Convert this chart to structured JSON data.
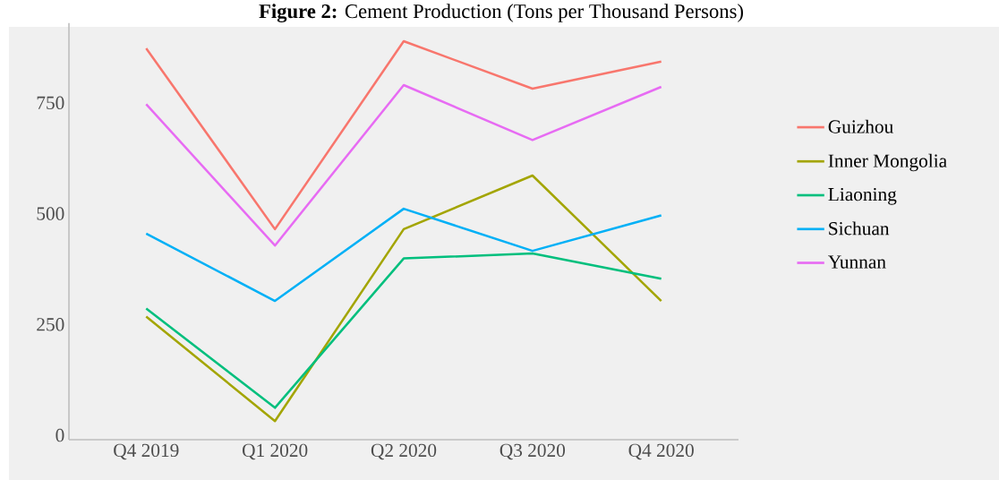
{
  "chart_data": {
    "type": "line",
    "title": "**Figure 2:** Cement Production (Tons per Thousand Persons)",
    "categories": [
      "Q4 2019",
      "Q1 2020",
      "Q2 2020",
      "Q3 2020",
      "Q4 2020"
    ],
    "series": [
      {
        "name": "Guizhou",
        "color": "#f8766d",
        "values": [
          873,
          465,
          889,
          782,
          843
        ]
      },
      {
        "name": "Inner Mongolia",
        "color": "#a3a500",
        "values": [
          268,
          32,
          465,
          586,
          303
        ]
      },
      {
        "name": "Liaoning",
        "color": "#00bf7d",
        "values": [
          286,
          62,
          399,
          410,
          353
        ]
      },
      {
        "name": "Sichuan",
        "color": "#00b0f6",
        "values": [
          455,
          303,
          511,
          416,
          496
        ]
      },
      {
        "name": "Yunnan",
        "color": "#e76bf3",
        "values": [
          747,
          428,
          790,
          666,
          786
        ]
      }
    ],
    "ylim": [
      -10,
      930
    ],
    "yticks": [
      0,
      250,
      500,
      750
    ],
    "grid": false,
    "legend": "right",
    "marker": "none",
    "line_style": "solid"
  }
}
